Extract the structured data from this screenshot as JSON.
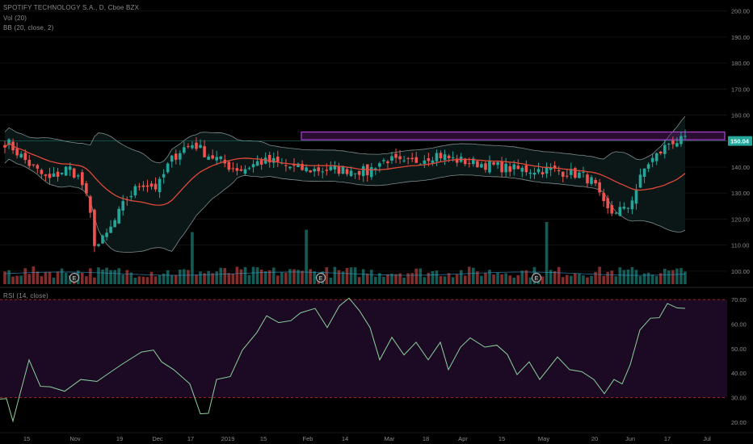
{
  "legend": {
    "symbol": "SPOTIFY TECHNOLOGY S.A., D, Cboe BZX",
    "volume": "Vol (20)",
    "bb": "BB (20, close, 2)",
    "rsi": "RSI (14, close)"
  },
  "price_label": "150.04",
  "colors": {
    "up": "#26a69a",
    "down": "#ef5350",
    "sma": "#e0493a",
    "band": "#7f8c8d",
    "resistance": "#b040d0",
    "rsi_line": "#8bd19b",
    "rsi_fill": "#1c0a24",
    "rsi_level": "#c0392b"
  },
  "chart_data": {
    "type": "candlestick",
    "y_ticks_price": [
      "200.00",
      "190.00",
      "180.00",
      "170.00",
      "160.00",
      "150.00",
      "140.00",
      "130.00",
      "120.00",
      "110.00",
      "100.00"
    ],
    "y_ticks_rsi": [
      "70.00",
      "60.00",
      "50.00",
      "40.00",
      "30.00",
      "20.00"
    ],
    "x_ticks": [
      "15",
      "Nov",
      "19",
      "Dec",
      "17",
      "2019",
      "15",
      "Feb",
      "14",
      "Mar",
      "18",
      "Apr",
      "15",
      "May",
      "20",
      "Jun",
      "17",
      "Jul"
    ],
    "ylim_price": [
      95,
      203
    ],
    "ylim_rsi": [
      17,
      73
    ],
    "rsi_levels": [
      70,
      30
    ],
    "resistance_zone": [
      150.5,
      153.5
    ],
    "horizontal_line": 150.04,
    "earnings_markers": [
      "E",
      "E",
      "E"
    ],
    "notes": "Daily candles Oct 2018 – Jun 2019 with 20-period Bollinger Bands, volume and RSI(14)."
  }
}
